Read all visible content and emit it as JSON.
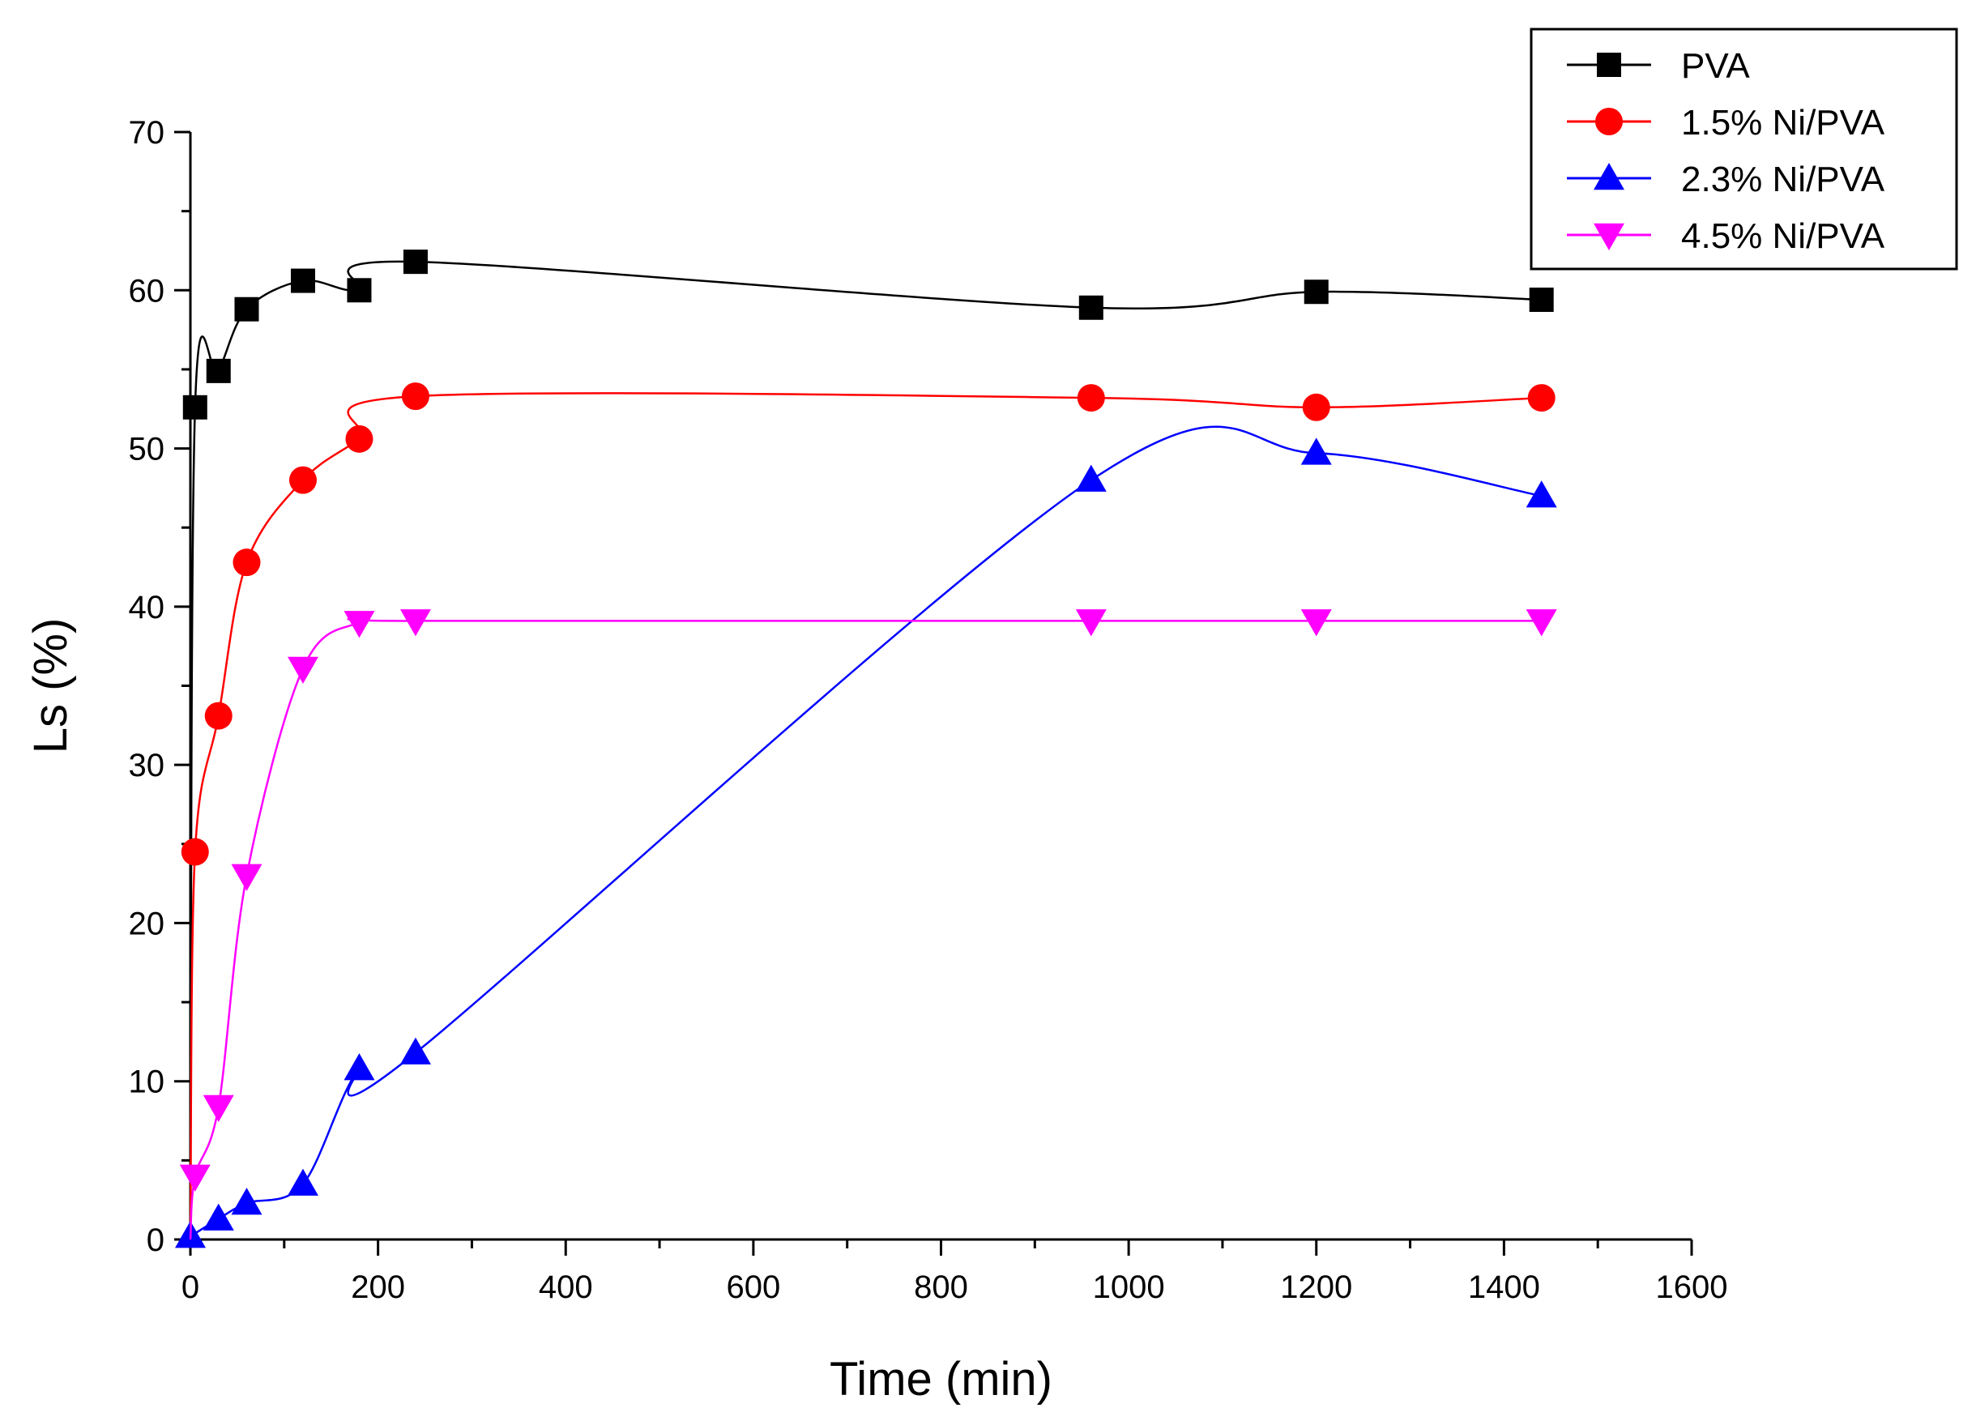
{
  "chart_data": {
    "type": "scatter",
    "title": "",
    "xlabel": "Time (min)",
    "ylabel": "Ls (%)",
    "xlim": [
      0,
      1600
    ],
    "ylim": [
      0,
      70
    ],
    "xticks": [
      0,
      200,
      400,
      600,
      800,
      1000,
      1200,
      1400,
      1600
    ],
    "yticks": [
      0,
      10,
      20,
      30,
      40,
      50,
      60,
      70
    ],
    "xtick_labels": [
      "0",
      "200",
      "400",
      "600",
      "800",
      "1000",
      "1200",
      "1400",
      "1600"
    ],
    "ytick_labels": [
      "0",
      "10",
      "20",
      "30",
      "40",
      "50",
      "60",
      "70"
    ],
    "grid": false,
    "legend_position": "top-right, outside plot area",
    "series": [
      {
        "name": "PVA",
        "color": "#000000",
        "marker": "square",
        "x": [
          0,
          5,
          30,
          60,
          120,
          180,
          240,
          960,
          1200,
          1440
        ],
        "y": [
          0,
          52.6,
          54.9,
          58.8,
          60.6,
          60.0,
          61.8,
          58.9,
          59.9,
          59.4
        ]
      },
      {
        "name": "1.5% Ni/PVA",
        "color": "#ff0000",
        "marker": "circle",
        "x": [
          0,
          5,
          30,
          60,
          120,
          180,
          240,
          960,
          1200,
          1440
        ],
        "y": [
          0,
          24.5,
          33.1,
          42.8,
          48.0,
          50.6,
          53.3,
          53.2,
          52.6,
          53.2
        ]
      },
      {
        "name": "2.3% Ni/PVA",
        "color": "#0000ff",
        "marker": "triangle-up",
        "x": [
          0,
          30,
          60,
          120,
          180,
          240,
          960,
          1200,
          1440
        ],
        "y": [
          0.2,
          1.3,
          2.3,
          3.5,
          10.8,
          11.8,
          48.0,
          49.7,
          47.0
        ]
      },
      {
        "name": "4.5% Ni/PVA",
        "color": "#ff00ff",
        "marker": "triangle-down",
        "x": [
          0,
          5,
          30,
          60,
          120,
          180,
          240,
          960,
          1200,
          1440
        ],
        "y": [
          0,
          4.0,
          8.4,
          23.0,
          36.1,
          39.0,
          39.1,
          39.1,
          39.1,
          39.1
        ]
      }
    ]
  }
}
